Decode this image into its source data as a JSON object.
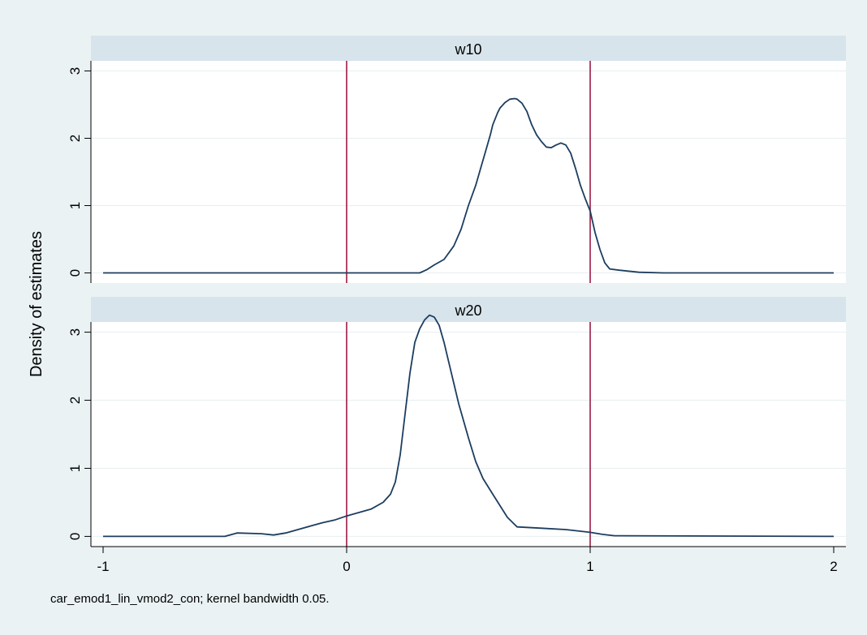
{
  "chart_data": {
    "type": "line",
    "ylabel": "Density of estimates",
    "xlabel": "",
    "xlim": [
      -1.05,
      2.05
    ],
    "ylim": [
      -0.15,
      3.15
    ],
    "xticks": [
      -1,
      0,
      1,
      2
    ],
    "xtick_labels": [
      "-1",
      "0",
      "1",
      "2"
    ],
    "yticks": [
      0,
      1,
      2,
      3
    ],
    "ytick_labels": [
      "0",
      "1",
      "2",
      "3"
    ],
    "reference_lines_x": [
      0,
      1
    ],
    "reference_line_color": "#9c1a44",
    "line_color": "#1c3d5e",
    "strip_color": "#d7e4ec",
    "grid": true,
    "note": "car_emod1_lin_vmod2_con; kernel bandwidth 0.05.",
    "panels": [
      {
        "title": "w10",
        "x": [
          -1,
          0.3,
          0.33,
          0.36,
          0.4,
          0.44,
          0.47,
          0.5,
          0.53,
          0.55,
          0.57,
          0.59,
          0.6,
          0.62,
          0.63,
          0.65,
          0.67,
          0.69,
          0.7,
          0.72,
          0.74,
          0.76,
          0.78,
          0.8,
          0.82,
          0.84,
          0.86,
          0.88,
          0.9,
          0.92,
          0.94,
          0.96,
          0.98,
          1.0,
          1.02,
          1.04,
          1.06,
          1.08,
          1.12,
          1.2,
          1.3,
          2
        ],
        "y": [
          0,
          0,
          0.05,
          0.12,
          0.2,
          0.4,
          0.65,
          1.0,
          1.3,
          1.55,
          1.8,
          2.05,
          2.2,
          2.38,
          2.45,
          2.53,
          2.58,
          2.59,
          2.58,
          2.52,
          2.4,
          2.2,
          2.05,
          1.95,
          1.87,
          1.86,
          1.9,
          1.93,
          1.9,
          1.78,
          1.55,
          1.3,
          1.1,
          0.92,
          0.6,
          0.35,
          0.15,
          0.06,
          0.04,
          0.01,
          0,
          0
        ]
      },
      {
        "title": "w20",
        "x": [
          -1,
          -0.5,
          -0.45,
          -0.35,
          -0.3,
          -0.25,
          -0.2,
          -0.15,
          -0.1,
          -0.05,
          0,
          0.05,
          0.1,
          0.15,
          0.18,
          0.2,
          0.22,
          0.24,
          0.26,
          0.28,
          0.3,
          0.32,
          0.34,
          0.36,
          0.38,
          0.4,
          0.42,
          0.44,
          0.46,
          0.48,
          0.5,
          0.53,
          0.56,
          0.6,
          0.63,
          0.66,
          0.7,
          0.8,
          0.9,
          1.0,
          1.05,
          1.1,
          2
        ],
        "y": [
          0,
          0,
          0.05,
          0.04,
          0.02,
          0.05,
          0.1,
          0.15,
          0.2,
          0.24,
          0.3,
          0.35,
          0.4,
          0.5,
          0.62,
          0.8,
          1.2,
          1.8,
          2.4,
          2.85,
          3.05,
          3.18,
          3.25,
          3.22,
          3.1,
          2.85,
          2.55,
          2.25,
          1.95,
          1.7,
          1.45,
          1.1,
          0.85,
          0.62,
          0.45,
          0.28,
          0.14,
          0.12,
          0.1,
          0.06,
          0.03,
          0.01,
          0
        ]
      }
    ]
  }
}
